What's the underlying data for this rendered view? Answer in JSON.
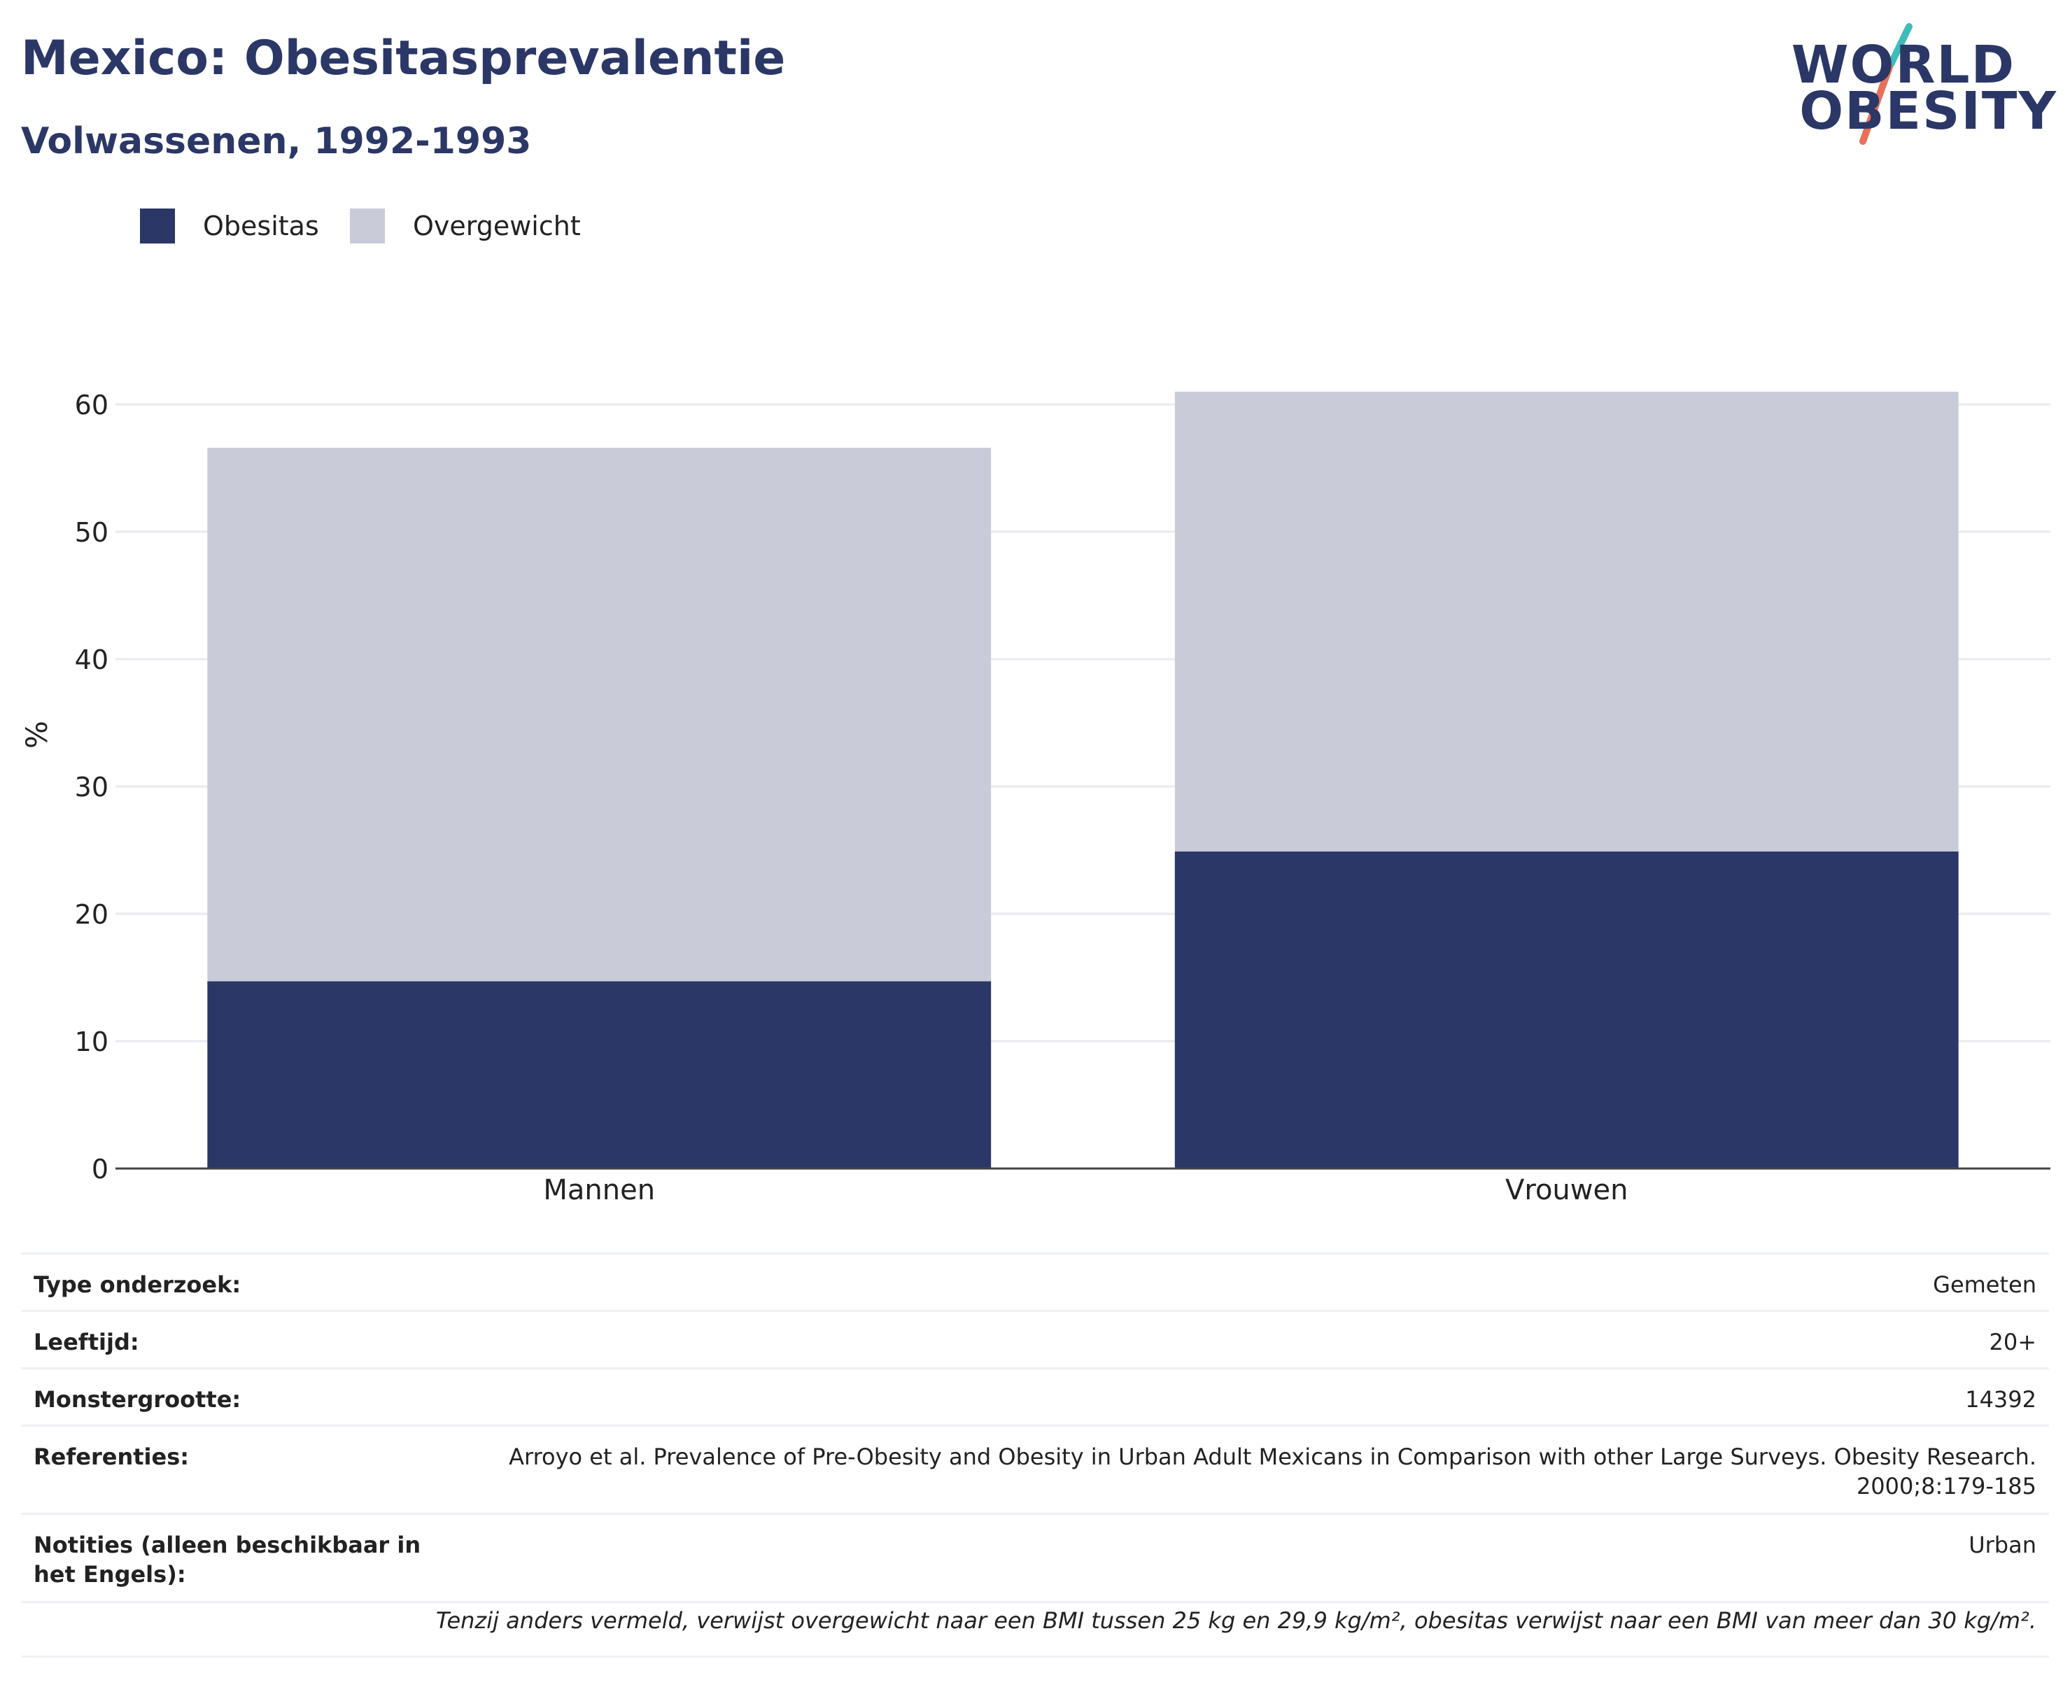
{
  "header": {
    "title": "Mexico: Obesitasprevalentie",
    "subtitle": "Volwassenen, 1992-1993",
    "logo_line1": "WORLD",
    "logo_line2": "OBESITY"
  },
  "legend": [
    {
      "label": "Obesitas",
      "color": "#2b3766"
    },
    {
      "label": "Overgewicht",
      "color": "#c9ccd8"
    }
  ],
  "chart_data": {
    "type": "bar",
    "stacked": true,
    "categories": [
      "Mannen",
      "Vrouwen"
    ],
    "series": [
      {
        "name": "Obesitas",
        "values": [
          14.7,
          24.9
        ],
        "color": "#2b3766"
      },
      {
        "name": "Overgewicht",
        "values": [
          41.9,
          36.1
        ],
        "color": "#c9ccd8"
      }
    ],
    "ylabel": "%",
    "ylim": [
      0,
      63
    ],
    "yticks": [
      0,
      10,
      20,
      30,
      40,
      50,
      60
    ],
    "grid": true,
    "legend_position": "top-left"
  },
  "info": {
    "rows": [
      {
        "key": "Type onderzoek:",
        "value": "Gemeten"
      },
      {
        "key": "Leeftijd:",
        "value": "20+"
      },
      {
        "key": "Monstergrootte:",
        "value": "14392"
      },
      {
        "key": "Referenties:",
        "value": "Arroyo et al. Prevalence of Pre-Obesity and Obesity in Urban Adult Mexicans in Comparison with other Large Surveys. Obesity Research. 2000;8:179-185"
      },
      {
        "key": "Notities (alleen beschikbaar in het Engels):",
        "value": "Urban"
      }
    ],
    "footnote": "Tenzij anders vermeld, verwijst overgewicht naar een BMI tussen 25 kg en 29,9 kg/m², obesitas verwijst naar een BMI van meer dan 30 kg/m²."
  }
}
